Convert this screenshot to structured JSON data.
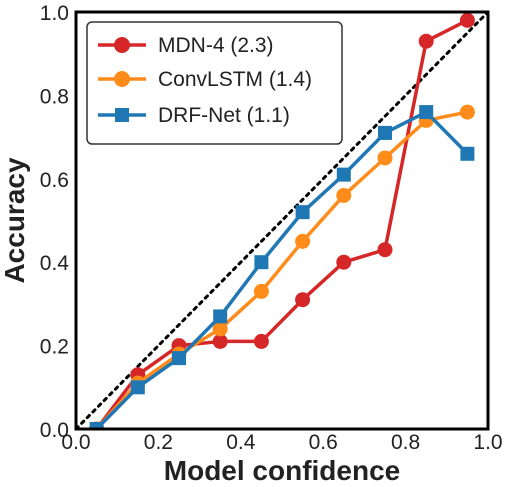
{
  "chart_data": {
    "type": "line",
    "title": "",
    "xlabel": "Model confidence",
    "ylabel": "Accuracy",
    "xlim": [
      0.0,
      1.0
    ],
    "ylim": [
      0.0,
      1.0
    ],
    "xticks": [
      "0.0",
      "0.2",
      "0.4",
      "0.6",
      "0.8",
      "1.0"
    ],
    "yticks": [
      "0.0",
      "0.2",
      "0.4",
      "0.6",
      "0.8",
      "1.0"
    ],
    "reference_line": "dotted diagonal y = x",
    "legend_position": "top-left",
    "grid": false,
    "series": [
      {
        "name": "MDN-4 (2.3)",
        "color": "#d62728",
        "marker": "circle",
        "x": [
          0.05,
          0.15,
          0.25,
          0.35,
          0.45,
          0.55,
          0.65,
          0.75,
          0.85,
          0.95
        ],
        "y": [
          0.0,
          0.13,
          0.2,
          0.21,
          0.21,
          0.31,
          0.4,
          0.43,
          0.93,
          0.98
        ]
      },
      {
        "name": "ConvLSTM (1.4)",
        "color": "#ff8c1a",
        "marker": "circle",
        "x": [
          0.05,
          0.15,
          0.25,
          0.35,
          0.45,
          0.55,
          0.65,
          0.75,
          0.85,
          0.95
        ],
        "y": [
          0.0,
          0.11,
          0.18,
          0.24,
          0.33,
          0.45,
          0.56,
          0.65,
          0.74,
          0.76
        ]
      },
      {
        "name": "DRF-Net (1.1)",
        "color": "#1f77b4",
        "marker": "square",
        "x": [
          0.05,
          0.15,
          0.25,
          0.35,
          0.45,
          0.55,
          0.65,
          0.75,
          0.85,
          0.95
        ],
        "y": [
          0.0,
          0.1,
          0.17,
          0.27,
          0.4,
          0.52,
          0.61,
          0.71,
          0.76,
          0.66
        ]
      }
    ]
  }
}
